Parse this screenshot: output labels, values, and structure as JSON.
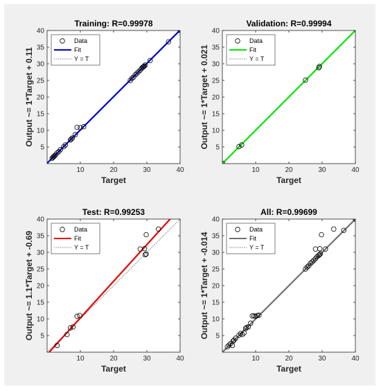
{
  "chart_data": [
    {
      "type": "scatter",
      "title": "Training: R=0.99978",
      "xlabel": "Target",
      "ylabel": "Output ~= 1*Target + 0.11",
      "xlim": [
        0,
        40
      ],
      "ylim": [
        0,
        40
      ],
      "xticks": [
        10,
        20,
        30,
        40
      ],
      "yticks": [
        5,
        10,
        15,
        20,
        25,
        30,
        35,
        40
      ],
      "legend": [
        "Data",
        "Fit",
        "Y = T"
      ],
      "legend_position": "top-left",
      "fit_color": "#0000c8",
      "fit": {
        "slope": 1,
        "intercept": 0.11
      },
      "points": [
        [
          1.5,
          1.6
        ],
        [
          1.8,
          1.9
        ],
        [
          2,
          2.1
        ],
        [
          2.2,
          2.3
        ],
        [
          2.5,
          2.6
        ],
        [
          3,
          3.2
        ],
        [
          3.5,
          3.6
        ],
        [
          4,
          4.2
        ],
        [
          5,
          5.1
        ],
        [
          5.5,
          5.6
        ],
        [
          7,
          7.1
        ],
        [
          7.3,
          7.4
        ],
        [
          7.6,
          7.7
        ],
        [
          8.5,
          8.7
        ],
        [
          9,
          10.9
        ],
        [
          10,
          10.8
        ],
        [
          11,
          11.1
        ],
        [
          25,
          25
        ],
        [
          25.5,
          25.6
        ],
        [
          26,
          26
        ],
        [
          26.5,
          26.7
        ],
        [
          27,
          27.1
        ],
        [
          27.5,
          27.6
        ],
        [
          28,
          28.1
        ],
        [
          28.5,
          28.7
        ],
        [
          28.8,
          29
        ],
        [
          29,
          29.1
        ],
        [
          29.2,
          29.3
        ],
        [
          29.5,
          29.6
        ],
        [
          31,
          31
        ],
        [
          36.5,
          36.6
        ],
        [
          40,
          40
        ]
      ]
    },
    {
      "type": "scatter",
      "title": "Validation: R=0.99994",
      "xlabel": "Target",
      "ylabel": "Output ~= 1*Target + 0.021",
      "xlim": [
        0,
        40
      ],
      "ylim": [
        0,
        40
      ],
      "xticks": [
        10,
        20,
        30,
        40
      ],
      "yticks": [
        5,
        10,
        15,
        20,
        25,
        30,
        35,
        40
      ],
      "legend": [
        "Data",
        "Fit",
        "Y = T"
      ],
      "legend_position": "top-left",
      "fit_color": "#00e600",
      "fit": {
        "slope": 1,
        "intercept": 0.021
      },
      "points": [
        [
          0,
          0.1
        ],
        [
          5,
          5.1
        ],
        [
          5.8,
          5.6
        ],
        [
          25,
          25.1
        ],
        [
          29,
          28.8
        ],
        [
          29.2,
          29.2
        ]
      ]
    },
    {
      "type": "scatter",
      "title": "Test: R=0.99253",
      "xlabel": "Target",
      "ylabel": "Output ~= 1.1*Target + -0.69",
      "xlim": [
        0,
        40
      ],
      "ylim": [
        0,
        40
      ],
      "xticks": [
        10,
        20,
        30,
        40
      ],
      "yticks": [
        5,
        10,
        15,
        20,
        25,
        30,
        35,
        40
      ],
      "legend": [
        "Data",
        "Fit",
        "Y = T"
      ],
      "legend_position": "top-left",
      "fit_color": "#e60000",
      "fit": {
        "slope": 1.1,
        "intercept": -0.69
      },
      "points": [
        [
          3,
          2
        ],
        [
          6,
          5.3
        ],
        [
          7,
          7.3
        ],
        [
          7.8,
          7.6
        ],
        [
          9,
          10.8
        ],
        [
          9.8,
          11
        ],
        [
          28,
          31
        ],
        [
          29.5,
          29.3
        ],
        [
          29.8,
          29.5
        ],
        [
          29.3,
          31.1
        ],
        [
          29.8,
          35.3
        ],
        [
          33.5,
          37
        ]
      ]
    },
    {
      "type": "scatter",
      "title": "All: R=0.99699",
      "xlabel": "Target",
      "ylabel": "Output ~= 1*Target + -0.014",
      "xlim": [
        0,
        40
      ],
      "ylim": [
        0,
        40
      ],
      "xticks": [
        10,
        20,
        30,
        40
      ],
      "yticks": [
        5,
        10,
        15,
        20,
        25,
        30,
        35,
        40
      ],
      "legend": [
        "Data",
        "Fit",
        "Y = T"
      ],
      "legend_position": "top-left",
      "fit_color": "#707070",
      "fit": {
        "slope": 1,
        "intercept": -0.014
      },
      "points": [
        [
          1.5,
          1.6
        ],
        [
          2,
          2.1
        ],
        [
          2.5,
          2.6
        ],
        [
          3,
          2
        ],
        [
          3.2,
          3.3
        ],
        [
          3.5,
          3.6
        ],
        [
          4,
          4.2
        ],
        [
          5,
          5.1
        ],
        [
          5.5,
          5.6
        ],
        [
          6,
          5.3
        ],
        [
          6.5,
          5.8
        ],
        [
          7,
          7.1
        ],
        [
          7.3,
          7.4
        ],
        [
          7.8,
          7.6
        ],
        [
          8.5,
          8.7
        ],
        [
          9,
          10.9
        ],
        [
          9.5,
          10.9
        ],
        [
          10,
          10.8
        ],
        [
          10.5,
          11
        ],
        [
          11,
          11.1
        ],
        [
          25,
          25
        ],
        [
          25.5,
          25.6
        ],
        [
          26,
          26
        ],
        [
          26.5,
          26.7
        ],
        [
          27,
          27.1
        ],
        [
          27.5,
          27.6
        ],
        [
          28,
          28.1
        ],
        [
          28,
          31
        ],
        [
          28.5,
          28.7
        ],
        [
          29,
          29.1
        ],
        [
          29.2,
          29.3
        ],
        [
          29.5,
          29.6
        ],
        [
          29.3,
          31.1
        ],
        [
          29.8,
          35.3
        ],
        [
          31,
          31
        ],
        [
          33.5,
          37
        ],
        [
          36.5,
          36.6
        ],
        [
          40,
          40
        ]
      ]
    }
  ]
}
